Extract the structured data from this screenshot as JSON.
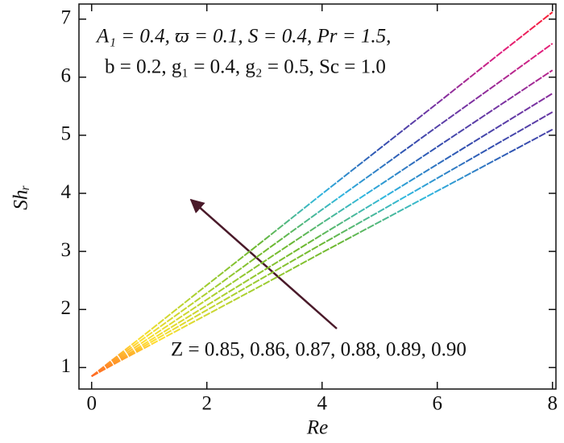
{
  "chart_data": {
    "type": "line",
    "x_label": "Re",
    "y_label": "Shᵣ",
    "annotations": [
      "A₁ = 0.4, ϖ = 0.1, S = 0.4, Pr = 1.5,",
      "b = 0.2, g₁ = 0.4, g₂ = 0.5, Sc = 1.0",
      "Z = 0.85, 0.86, 0.87, 0.88, 0.89, 0.90"
    ],
    "x": [
      0,
      0.5,
      1,
      2,
      3,
      4,
      5,
      6,
      7,
      8
    ],
    "series": [
      {
        "values": [
          0.85,
          1.12,
          1.38,
          1.91,
          2.44,
          2.98,
          3.51,
          4.04,
          4.57,
          5.1
        ]
      },
      {
        "values": [
          0.85,
          1.13,
          1.42,
          1.99,
          2.56,
          3.13,
          3.69,
          4.26,
          4.83,
          5.4
        ]
      },
      {
        "values": [
          0.85,
          1.15,
          1.46,
          2.07,
          2.68,
          3.29,
          3.89,
          4.5,
          5.11,
          5.72
        ]
      },
      {
        "values": [
          0.85,
          1.18,
          1.51,
          2.17,
          2.83,
          3.49,
          4.14,
          4.8,
          5.46,
          6.12
        ]
      },
      {
        "values": [
          0.85,
          1.21,
          1.57,
          2.28,
          3.0,
          3.72,
          4.43,
          5.15,
          5.86,
          6.58
        ]
      },
      {
        "values": [
          0.85,
          1.24,
          1.63,
          2.42,
          3.2,
          3.99,
          4.77,
          5.55,
          6.34,
          7.12
        ]
      }
    ],
    "colormap": [
      "#ff3b1f",
      "#ffe030",
      "#a8d030",
      "#6cb830",
      "#30b8e0",
      "#3050b0",
      "#8030a0",
      "#e02080",
      "#ff2020"
    ],
    "xlim": [
      -0.22,
      8.06
    ],
    "ylim": [
      0.63,
      7.26
    ],
    "xticks": [
      0,
      2,
      4,
      6,
      8
    ],
    "yticks": [
      1,
      2,
      3,
      4,
      5,
      6,
      7
    ]
  }
}
